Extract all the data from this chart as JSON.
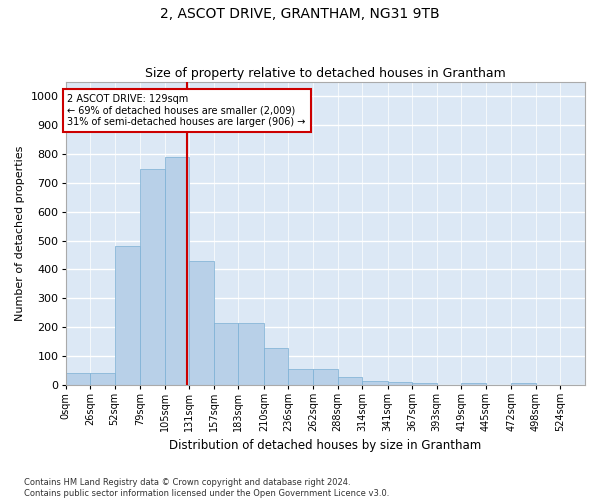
{
  "title": "2, ASCOT DRIVE, GRANTHAM, NG31 9TB",
  "subtitle": "Size of property relative to detached houses in Grantham",
  "xlabel": "Distribution of detached houses by size in Grantham",
  "ylabel": "Number of detached properties",
  "bar_color": "#b8d0e8",
  "bar_edge_color": "#7aafd4",
  "background_color": "#dce8f5",
  "grid_color": "#ffffff",
  "vline_x": 129,
  "vline_color": "#cc0000",
  "annotation_text": "2 ASCOT DRIVE: 129sqm\n← 69% of detached houses are smaller (2,009)\n31% of semi-detached houses are larger (906) →",
  "annotation_box_facecolor": "#ffffff",
  "annotation_box_edgecolor": "#cc0000",
  "footer_line1": "Contains HM Land Registry data © Crown copyright and database right 2024.",
  "footer_line2": "Contains public sector information licensed under the Open Government Licence v3.0.",
  "bin_edges": [
    0,
    26,
    52,
    79,
    105,
    131,
    157,
    183,
    210,
    236,
    262,
    288,
    314,
    341,
    367,
    393,
    419,
    445,
    472,
    498,
    524,
    550
  ],
  "bin_labels": [
    "0sqm",
    "26sqm",
    "52sqm",
    "79sqm",
    "105sqm",
    "131sqm",
    "157sqm",
    "183sqm",
    "210sqm",
    "236sqm",
    "262sqm",
    "288sqm",
    "314sqm",
    "341sqm",
    "367sqm",
    "393sqm",
    "419sqm",
    "445sqm",
    "472sqm",
    "498sqm",
    "524sqm"
  ],
  "counts": [
    40,
    40,
    480,
    750,
    790,
    430,
    215,
    215,
    128,
    55,
    55,
    28,
    15,
    10,
    5,
    0,
    5,
    0,
    5,
    0,
    0
  ],
  "ylim": [
    0,
    1050
  ],
  "yticks": [
    0,
    100,
    200,
    300,
    400,
    500,
    600,
    700,
    800,
    900,
    1000
  ]
}
